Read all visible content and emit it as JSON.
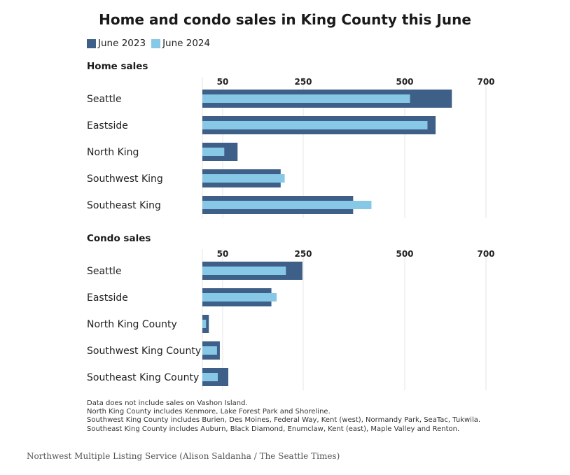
{
  "title": "Home and condo sales in King County this June",
  "legend": [
    {
      "label": "June 2023",
      "color": "#3e5f87"
    },
    {
      "label": "June 2024",
      "color": "#87c8e6"
    }
  ],
  "chart_data": [
    {
      "type": "bar",
      "orientation": "horizontal",
      "title": "Home sales",
      "categories": [
        "Seattle",
        "Eastside",
        "North King",
        "Southwest King",
        "Southeast King"
      ],
      "tick_labels": [
        "50",
        "250",
        "500",
        "700"
      ],
      "tick_values": [
        50,
        250,
        500,
        700
      ],
      "xlim": [
        0,
        750
      ],
      "series": [
        {
          "name": "June 2023",
          "values": [
            616,
            576,
            87,
            194,
            373
          ]
        },
        {
          "name": "June 2024",
          "values": [
            513,
            556,
            54,
            204,
            418
          ]
        }
      ]
    },
    {
      "type": "bar",
      "orientation": "horizontal",
      "title": "Condo sales",
      "categories": [
        "Seattle",
        "Eastside",
        "North King County",
        "Southwest King County",
        "Southeast King County"
      ],
      "tick_labels": [
        "50",
        "250",
        "500",
        "700"
      ],
      "tick_values": [
        50,
        250,
        500,
        700
      ],
      "xlim": [
        0,
        750
      ],
      "series": [
        {
          "name": "June 2023",
          "values": [
            248,
            171,
            16,
            43,
            64
          ]
        },
        {
          "name": "June 2024",
          "values": [
            207,
            184,
            9,
            36,
            38
          ]
        }
      ]
    }
  ],
  "notes": [
    "Data does not include sales on Vashon Island.",
    "North King County includes Kenmore, Lake Forest Park and Shoreline.",
    "Southwest King County includes Burien, Des Moines, Federal Way, Kent (west), Normandy Park, SeaTac, Tukwila.",
    "Southeast King County includes Auburn, Black Diamond, Enumclaw, Kent (east), Maple Valley and Renton."
  ],
  "source": "Northwest Multiple Listing Service (Alison Saldanha / The Seattle Times)"
}
